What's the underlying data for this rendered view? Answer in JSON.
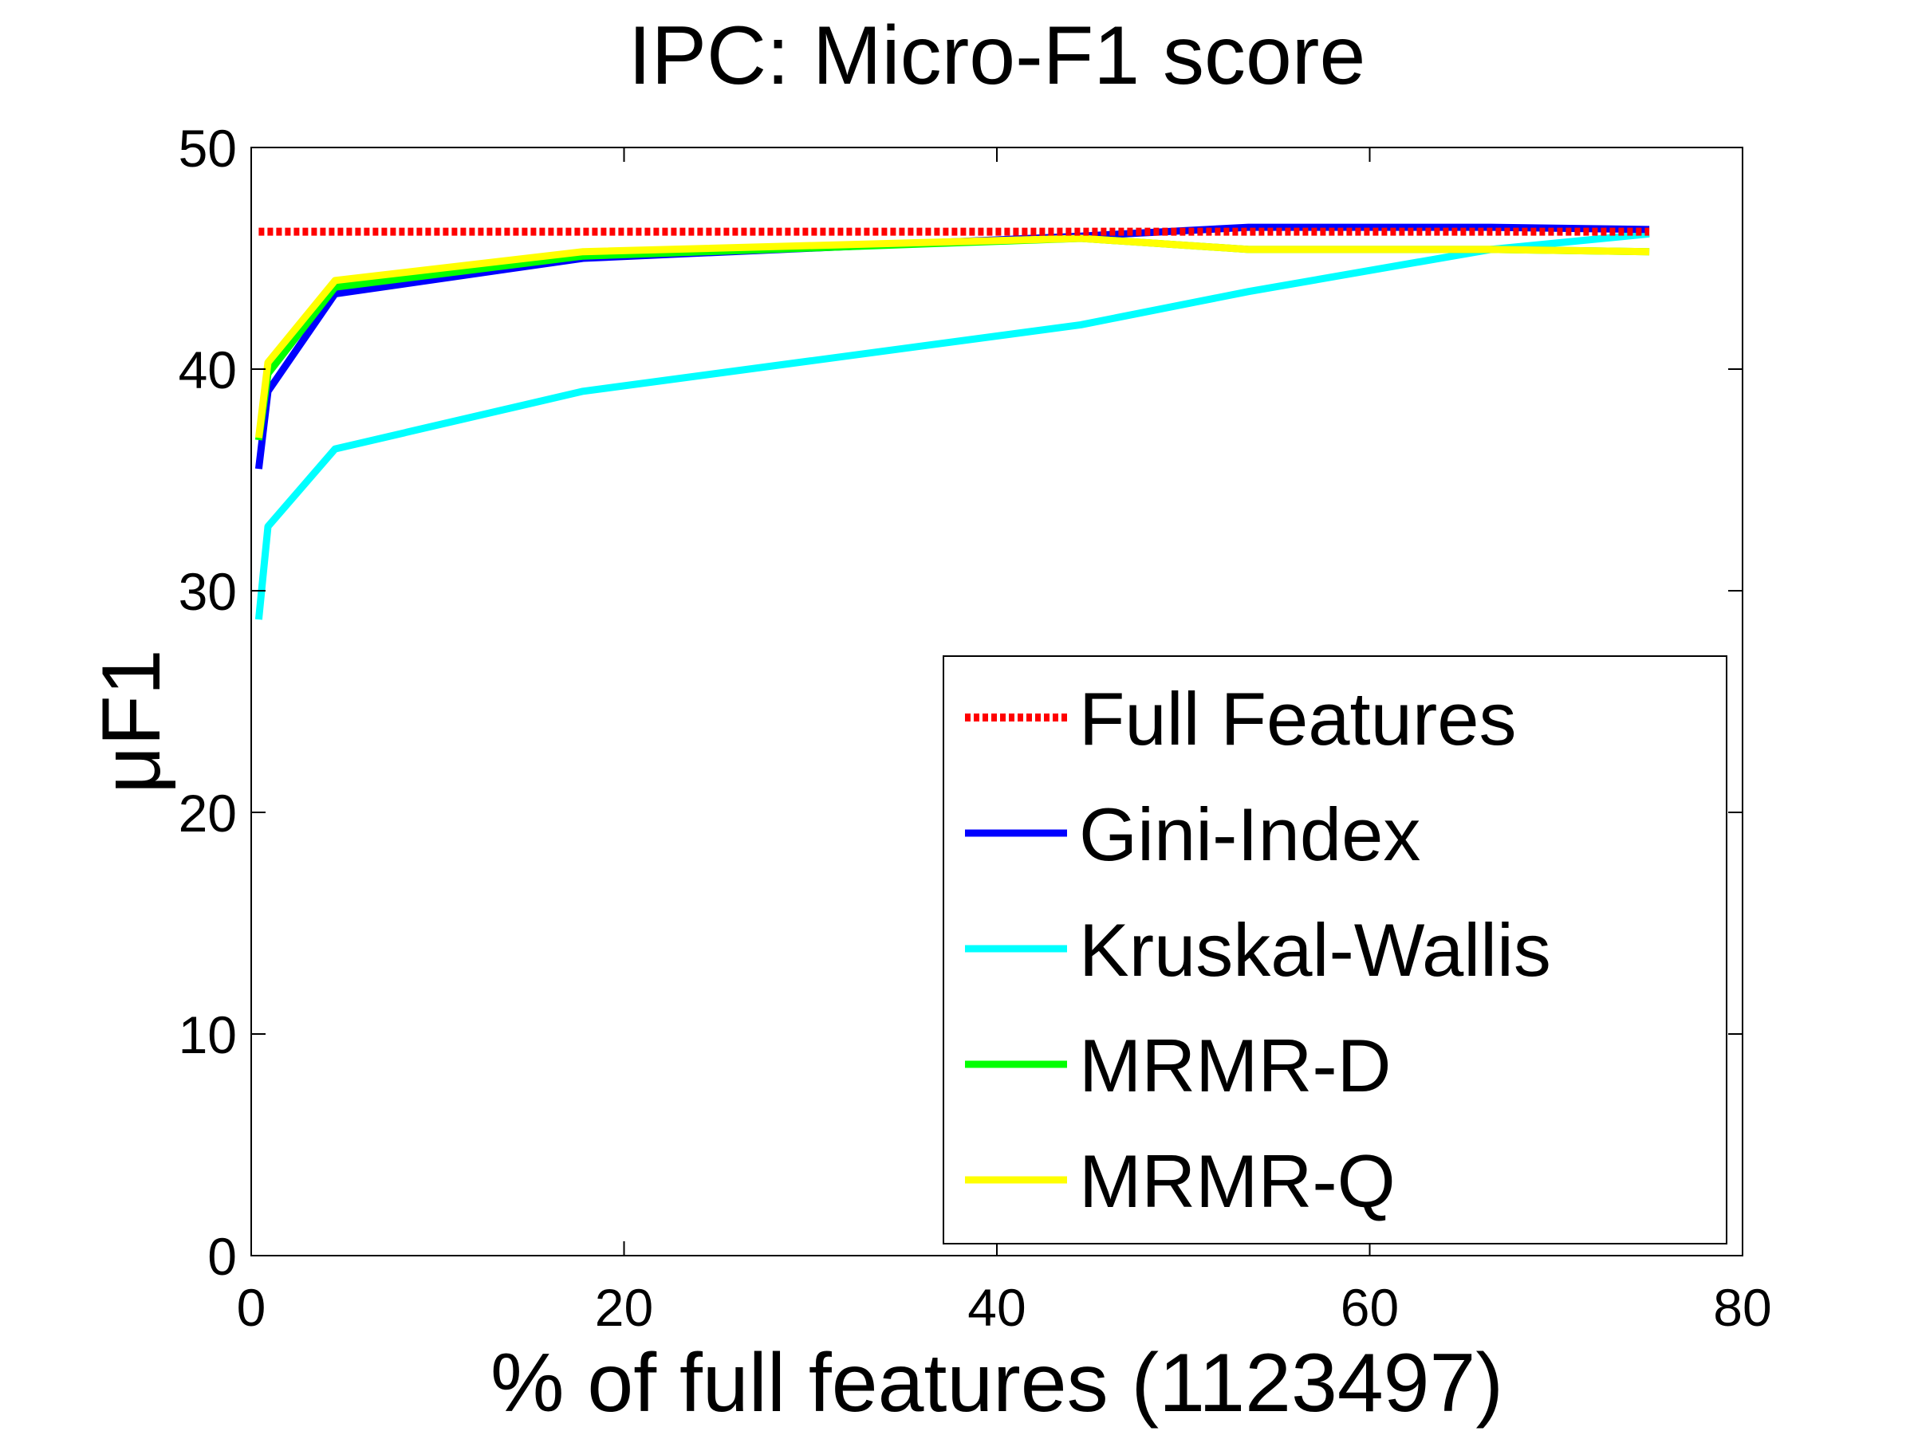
{
  "chart_data": {
    "type": "line",
    "title": "IPC: Micro-F1 score",
    "xlabel": "% of full features (1123497)",
    "ylabel": "μF1",
    "xlim": [
      0,
      80
    ],
    "ylim": [
      0,
      50
    ],
    "xticks": [
      0,
      20,
      40,
      60,
      80
    ],
    "yticks": [
      0,
      10,
      20,
      30,
      40,
      50
    ],
    "grid": false,
    "legend_position": "bottom-right",
    "series": [
      {
        "name": "Full Features",
        "color": "#ff0000",
        "style": "dotted",
        "x": [
          0.4,
          75
        ],
        "y": [
          46.2,
          46.2
        ]
      },
      {
        "name": "Gini-Index",
        "color": "#0000ff",
        "style": "solid",
        "x": [
          0.4,
          0.9,
          4.5,
          17.8,
          44.5,
          53.5,
          66.5,
          75
        ],
        "y": [
          35.5,
          39.0,
          43.4,
          45.0,
          46.0,
          46.4,
          46.4,
          46.3
        ]
      },
      {
        "name": "Kruskal-Wallis",
        "color": "#00ffff",
        "style": "solid",
        "x": [
          0.4,
          0.9,
          4.5,
          17.8,
          44.5,
          53.5,
          66.5,
          75
        ],
        "y": [
          28.7,
          32.9,
          36.4,
          39.0,
          42.0,
          43.5,
          45.4,
          46.1
        ]
      },
      {
        "name": "MRMR-D",
        "color": "#00ff00",
        "style": "solid",
        "x": [
          0.4,
          0.9,
          4.5,
          17.8,
          44.5,
          53.5,
          66.5,
          75
        ],
        "y": [
          36.8,
          39.8,
          43.7,
          45.1,
          45.9,
          45.4,
          45.4,
          45.3
        ]
      },
      {
        "name": "MRMR-Q",
        "color": "#ffff00",
        "style": "solid",
        "x": [
          0.4,
          0.9,
          4.5,
          17.8,
          44.5,
          53.5,
          66.5,
          75
        ],
        "y": [
          36.9,
          40.3,
          44.0,
          45.3,
          45.9,
          45.4,
          45.4,
          45.3
        ]
      }
    ]
  }
}
